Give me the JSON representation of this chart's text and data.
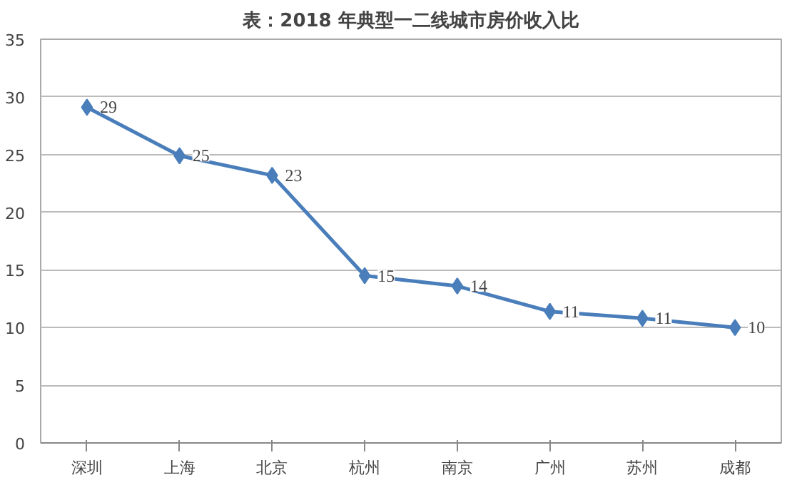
{
  "chart_data": {
    "type": "line",
    "title": "表：2018 年典型一二线城市房价收入比",
    "categories": [
      "深圳",
      "上海",
      "北京",
      "杭州",
      "南京",
      "广州",
      "苏州",
      "成都"
    ],
    "series": [
      {
        "color": "#4a7ebb",
        "values": [
          29.1,
          24.9,
          23.2,
          14.5,
          13.6,
          11.4,
          10.8,
          10.0
        ],
        "value_labels": [
          "29",
          "25",
          "23",
          "15",
          "14",
          "11",
          "11",
          "10"
        ]
      }
    ],
    "ylim": [
      0,
      35
    ],
    "yticks": [
      0,
      5,
      10,
      15,
      20,
      25,
      30,
      35
    ],
    "grid": "y",
    "marker": "diamond",
    "line_style": "solid"
  }
}
